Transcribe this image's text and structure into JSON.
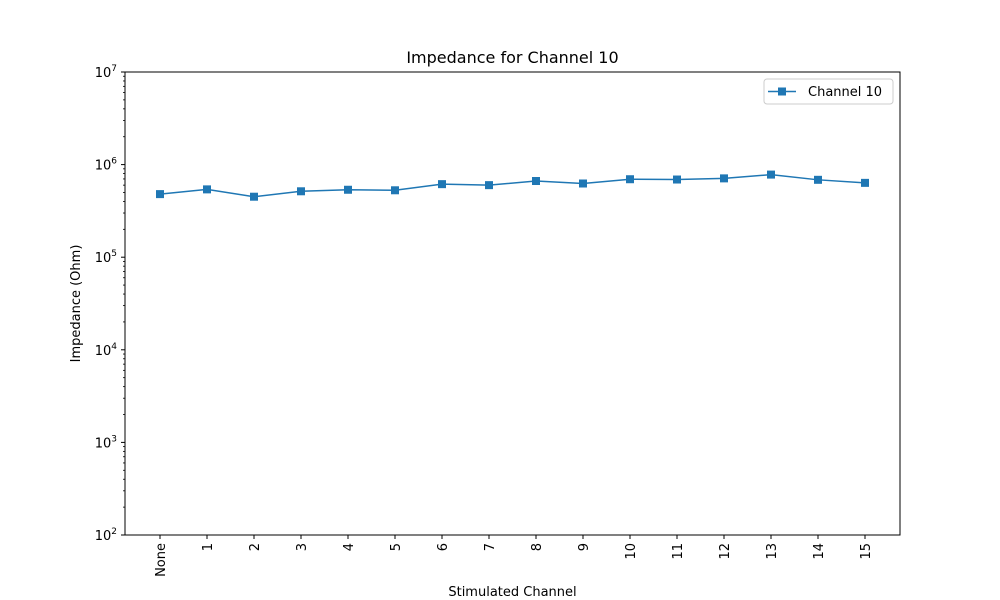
{
  "chart_data": {
    "type": "line",
    "title": "Impedance for Channel 10",
    "xlabel": "Stimulated Channel",
    "ylabel": "Impedance (Ohm)",
    "yscale": "log",
    "ylim": [
      100,
      10000000
    ],
    "y_ticks": [
      {
        "value": 100,
        "base": "10",
        "exp": "2"
      },
      {
        "value": 1000,
        "base": "10",
        "exp": "3"
      },
      {
        "value": 10000,
        "base": "10",
        "exp": "4"
      },
      {
        "value": 100000,
        "base": "10",
        "exp": "5"
      },
      {
        "value": 1000000,
        "base": "10",
        "exp": "6"
      },
      {
        "value": 10000000,
        "base": "10",
        "exp": "7"
      }
    ],
    "categories": [
      "None",
      "1",
      "2",
      "3",
      "4",
      "5",
      "6",
      "7",
      "8",
      "9",
      "10",
      "11",
      "12",
      "13",
      "14",
      "15"
    ],
    "series": [
      {
        "name": "Channel 10",
        "color": "#1f77b4",
        "marker": "square",
        "values": [
          480000,
          540000,
          450000,
          515000,
          535000,
          528000,
          615000,
          600000,
          665000,
          625000,
          695000,
          690000,
          710000,
          780000,
          685000,
          635000
        ]
      }
    ],
    "legend": "upper-right",
    "grid": false
  }
}
